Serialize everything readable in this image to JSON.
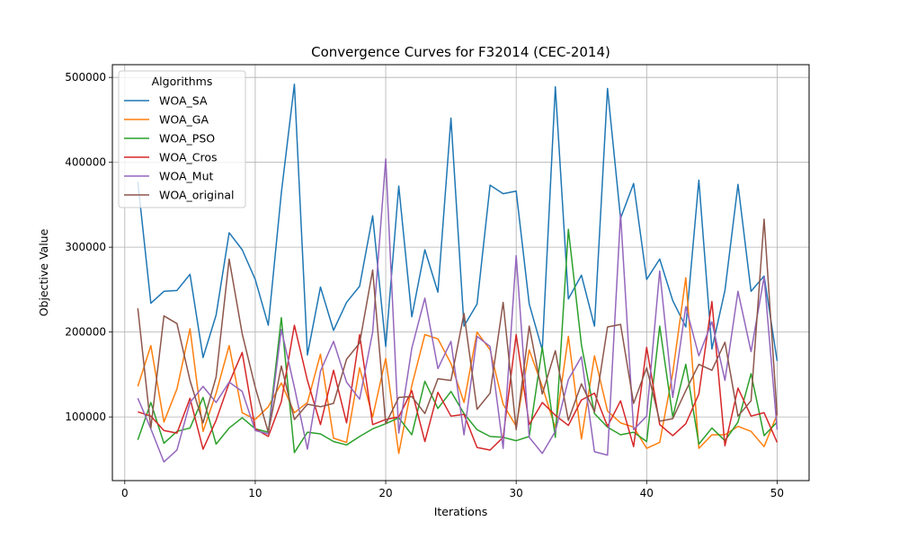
{
  "chart_data": {
    "type": "line",
    "title": "Convergence Curves for F32014 (CEC-2014)",
    "xlabel": "Iterations",
    "ylabel": "Objective Value",
    "xlim": [
      -0.95,
      52.45
    ],
    "ylim": [
      25000,
      515000
    ],
    "xticks": [
      0,
      10,
      20,
      30,
      40,
      50
    ],
    "yticks": [
      100000,
      200000,
      300000,
      400000,
      500000
    ],
    "grid": true,
    "legend": {
      "title": "Algorithms",
      "placement": "top-left"
    },
    "x": [
      1,
      2,
      3,
      4,
      5,
      6,
      7,
      8,
      9,
      10,
      11,
      12,
      13,
      14,
      15,
      16,
      17,
      18,
      19,
      20,
      21,
      22,
      23,
      24,
      25,
      26,
      27,
      28,
      29,
      30,
      31,
      32,
      33,
      34,
      35,
      36,
      37,
      38,
      39,
      40,
      41,
      42,
      43,
      44,
      45,
      46,
      47,
      48,
      49,
      50
    ],
    "series": [
      {
        "name": "WOA_SA",
        "color": "#1f77b4",
        "values": [
          377000,
          234000,
          248000,
          249000,
          268000,
          170000,
          220000,
          317000,
          297000,
          262000,
          208000,
          364000,
          492000,
          173000,
          253000,
          202000,
          235000,
          254000,
          337000,
          183000,
          372000,
          218000,
          297000,
          247000,
          452000,
          207000,
          233000,
          373000,
          363000,
          366000,
          233000,
          179000,
          489000,
          239000,
          267000,
          207000,
          487000,
          334000,
          375000,
          262000,
          286000,
          237000,
          206000,
          379000,
          180000,
          249000,
          374000,
          248000,
          266000,
          166000
        ]
      },
      {
        "name": "WOA_GA",
        "color": "#ff7f0e",
        "values": [
          136000,
          184000,
          94000,
          133000,
          204000,
          83000,
          128000,
          184000,
          105000,
          97000,
          112000,
          140000,
          105000,
          117000,
          174000,
          75000,
          70000,
          158000,
          100000,
          169000,
          57000,
          137000,
          197000,
          192000,
          163000,
          117000,
          200000,
          179000,
          115000,
          89000,
          179000,
          136000,
          87000,
          195000,
          74000,
          172000,
          107000,
          93000,
          88000,
          63000,
          70000,
          152000,
          264000,
          63000,
          79000,
          79000,
          89000,
          83000,
          65000,
          103000
        ]
      },
      {
        "name": "WOA_PSO",
        "color": "#2ca02c",
        "values": [
          73000,
          117000,
          69000,
          83000,
          87000,
          123000,
          68000,
          87000,
          99000,
          86000,
          82000,
          217000,
          58000,
          82000,
          80000,
          71000,
          67000,
          77000,
          86000,
          92000,
          99000,
          79000,
          142000,
          110000,
          130000,
          104000,
          85000,
          77000,
          76000,
          72000,
          77000,
          182000,
          76000,
          321000,
          185000,
          104000,
          88000,
          79000,
          82000,
          71000,
          207000,
          100000,
          162000,
          68000,
          87000,
          72000,
          94000,
          151000,
          78000,
          94000
        ]
      },
      {
        "name": "WOA_Cros",
        "color": "#d62728",
        "values": [
          106000,
          101000,
          84000,
          81000,
          122000,
          62000,
          96000,
          140000,
          176000,
          86000,
          77000,
          118000,
          208000,
          143000,
          91000,
          155000,
          93000,
          197000,
          91000,
          97000,
          100000,
          131000,
          71000,
          129000,
          101000,
          103000,
          64000,
          61000,
          76000,
          197000,
          91000,
          117000,
          102000,
          90000,
          120000,
          128000,
          89000,
          119000,
          65000,
          182000,
          91000,
          78000,
          92000,
          127000,
          236000,
          66000,
          134000,
          101000,
          105000,
          70000
        ]
      },
      {
        "name": "WOA_Mut",
        "color": "#9467bd",
        "values": [
          122000,
          86000,
          47000,
          61000,
          117000,
          136000,
          117000,
          141000,
          130000,
          84000,
          80000,
          203000,
          135000,
          62000,
          154000,
          189000,
          141000,
          121000,
          200000,
          404000,
          81000,
          181000,
          240000,
          157000,
          189000,
          79000,
          195000,
          183000,
          63000,
          290000,
          76000,
          57000,
          83000,
          144000,
          171000,
          59000,
          55000,
          339000,
          85000,
          101000,
          272000,
          123000,
          230000,
          172000,
          212000,
          143000,
          248000,
          177000,
          265000,
          85000
        ]
      },
      {
        "name": "WOA_original",
        "color": "#8c564b",
        "values": [
          228000,
          87000,
          219000,
          210000,
          143000,
          93000,
          147000,
          286000,
          198000,
          135000,
          82000,
          160000,
          97000,
          115000,
          112000,
          116000,
          168000,
          187000,
          273000,
          92000,
          123000,
          124000,
          104000,
          145000,
          143000,
          222000,
          109000,
          128000,
          235000,
          85000,
          207000,
          127000,
          178000,
          96000,
          139000,
          106000,
          206000,
          209000,
          116000,
          158000,
          95000,
          98000,
          131000,
          162000,
          155000,
          188000,
          101000,
          119000,
          333000,
          102000
        ]
      }
    ]
  }
}
